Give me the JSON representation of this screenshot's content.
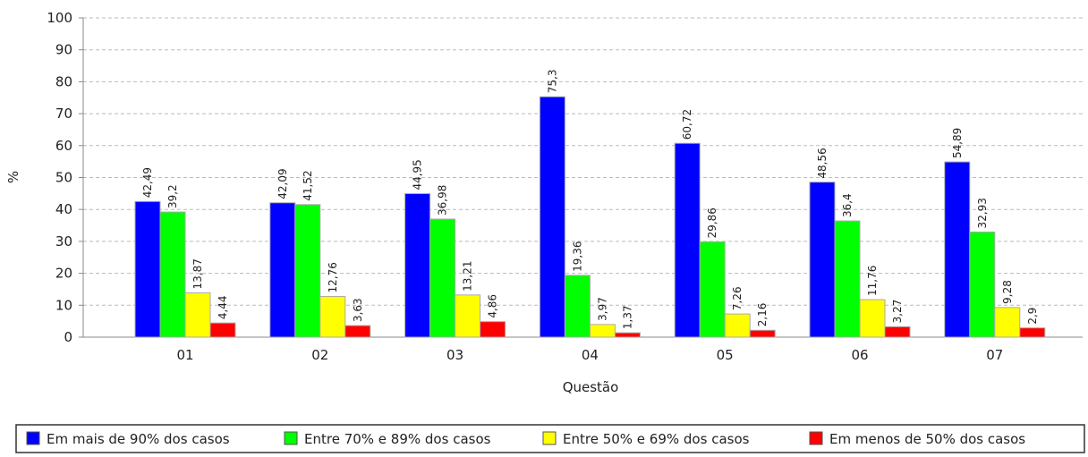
{
  "chart_data": {
    "type": "bar",
    "x_label": "Questão",
    "y_label": "%",
    "categories": [
      "01",
      "02",
      "03",
      "04",
      "05",
      "06",
      "07"
    ],
    "series": [
      {
        "name": "Em mais de 90% dos casos",
        "color": "#0000ff",
        "values": [
          42.49,
          42.09,
          44.95,
          75.3,
          60.72,
          48.56,
          54.89
        ],
        "value_labels": [
          "42,49",
          "42,09",
          "44,95",
          "75,3",
          "60,72",
          "48,56",
          "54,89"
        ]
      },
      {
        "name": "Entre 70% e 89% dos casos",
        "color": "#00ff00",
        "values": [
          39.2,
          41.52,
          36.98,
          19.36,
          29.86,
          36.4,
          32.93
        ],
        "value_labels": [
          "39,2",
          "41,52",
          "36,98",
          "19,36",
          "29,86",
          "36,4",
          "32,93"
        ]
      },
      {
        "name": "Entre 50% e 69% dos casos",
        "color": "#ffff00",
        "values": [
          13.87,
          12.76,
          13.21,
          3.97,
          7.26,
          11.76,
          9.28
        ],
        "value_labels": [
          "13,87",
          "12,76",
          "13,21",
          "3,97",
          "7,26",
          "11,76",
          "9,28"
        ]
      },
      {
        "name": "Em menos de 50% dos casos",
        "color": "#ff0000",
        "values": [
          4.44,
          3.63,
          4.86,
          1.37,
          2.16,
          3.27,
          2.9
        ],
        "value_labels": [
          "4,44",
          "3,63",
          "4,86",
          "1,37",
          "2,16",
          "3,27",
          "2,9"
        ]
      }
    ],
    "ylim": [
      0,
      100
    ],
    "yticks": [
      0,
      10,
      20,
      30,
      40,
      50,
      60,
      70,
      80,
      90,
      100
    ],
    "grid": true,
    "legend": "bottom"
  }
}
